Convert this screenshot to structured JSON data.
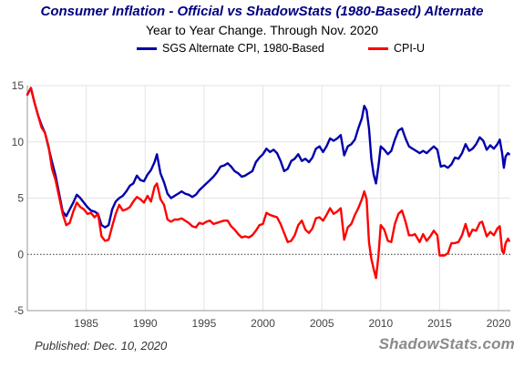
{
  "title": "Consumer Inflation - Official vs ShadowStats (1980-Based) Alternate",
  "subtitle": "Year to Year Change. Through Nov. 2020",
  "footer": {
    "published": "Published: Dec. 10, 2020",
    "brand": "ShadowStats.com"
  },
  "colors": {
    "sgs": "#0000aa",
    "cpi": "#ff0000",
    "title": "#000080"
  },
  "chart_data": {
    "type": "line",
    "xlabel": "",
    "ylabel": "",
    "xlim": [
      1980.0,
      2021.0
    ],
    "ylim": [
      -5,
      15
    ],
    "yticks": [
      -5,
      0,
      5,
      10,
      15
    ],
    "xticks": [
      1985,
      1990,
      1995,
      2000,
      2005,
      2010,
      2015,
      2020
    ],
    "grid": true,
    "zero_line": "dotted",
    "legend_position": "top",
    "series": [
      {
        "name": "SGS Alternate CPI, 1980-Based",
        "color": "#0000aa",
        "points": [
          [
            1980.0,
            14.2
          ],
          [
            1980.3,
            14.8
          ],
          [
            1980.6,
            13.5
          ],
          [
            1980.9,
            12.4
          ],
          [
            1981.2,
            11.5
          ],
          [
            1981.5,
            10.8
          ],
          [
            1981.8,
            9.5
          ],
          [
            1982.1,
            8.2
          ],
          [
            1982.4,
            7.0
          ],
          [
            1982.7,
            5.4
          ],
          [
            1983.0,
            3.8
          ],
          [
            1983.3,
            3.4
          ],
          [
            1983.6,
            4.0
          ],
          [
            1983.9,
            4.6
          ],
          [
            1984.2,
            5.3
          ],
          [
            1984.5,
            5.0
          ],
          [
            1984.8,
            4.6
          ],
          [
            1985.1,
            4.2
          ],
          [
            1985.4,
            3.9
          ],
          [
            1985.7,
            3.8
          ],
          [
            1986.0,
            3.6
          ],
          [
            1986.3,
            2.6
          ],
          [
            1986.6,
            2.4
          ],
          [
            1986.9,
            2.6
          ],
          [
            1987.2,
            4.0
          ],
          [
            1987.5,
            4.7
          ],
          [
            1987.8,
            5.0
          ],
          [
            1988.1,
            5.2
          ],
          [
            1988.4,
            5.6
          ],
          [
            1988.7,
            6.1
          ],
          [
            1989.0,
            6.3
          ],
          [
            1989.3,
            7.0
          ],
          [
            1989.6,
            6.6
          ],
          [
            1989.9,
            6.5
          ],
          [
            1990.2,
            7.1
          ],
          [
            1990.5,
            7.5
          ],
          [
            1990.8,
            8.2
          ],
          [
            1991.0,
            8.9
          ],
          [
            1991.3,
            7.2
          ],
          [
            1991.6,
            6.4
          ],
          [
            1991.9,
            5.4
          ],
          [
            1992.2,
            5.0
          ],
          [
            1992.5,
            5.2
          ],
          [
            1992.8,
            5.4
          ],
          [
            1993.1,
            5.6
          ],
          [
            1993.4,
            5.4
          ],
          [
            1993.7,
            5.3
          ],
          [
            1994.0,
            5.1
          ],
          [
            1994.3,
            5.3
          ],
          [
            1994.6,
            5.7
          ],
          [
            1994.9,
            6.0
          ],
          [
            1995.2,
            6.3
          ],
          [
            1995.5,
            6.6
          ],
          [
            1995.8,
            6.9
          ],
          [
            1996.1,
            7.3
          ],
          [
            1996.4,
            7.8
          ],
          [
            1996.7,
            7.9
          ],
          [
            1997.0,
            8.1
          ],
          [
            1997.3,
            7.8
          ],
          [
            1997.6,
            7.4
          ],
          [
            1997.9,
            7.2
          ],
          [
            1998.2,
            6.9
          ],
          [
            1998.5,
            7.0
          ],
          [
            1998.8,
            7.2
          ],
          [
            1999.1,
            7.4
          ],
          [
            1999.4,
            8.2
          ],
          [
            1999.7,
            8.6
          ],
          [
            2000.0,
            8.9
          ],
          [
            2000.3,
            9.4
          ],
          [
            2000.6,
            9.1
          ],
          [
            2000.9,
            9.3
          ],
          [
            2001.2,
            9.0
          ],
          [
            2001.5,
            8.3
          ],
          [
            2001.8,
            7.4
          ],
          [
            2002.1,
            7.6
          ],
          [
            2002.4,
            8.3
          ],
          [
            2002.7,
            8.5
          ],
          [
            2003.0,
            8.9
          ],
          [
            2003.3,
            8.3
          ],
          [
            2003.6,
            8.5
          ],
          [
            2003.9,
            8.2
          ],
          [
            2004.2,
            8.6
          ],
          [
            2004.5,
            9.4
          ],
          [
            2004.8,
            9.6
          ],
          [
            2005.1,
            9.1
          ],
          [
            2005.4,
            9.6
          ],
          [
            2005.7,
            10.3
          ],
          [
            2006.0,
            10.1
          ],
          [
            2006.3,
            10.3
          ],
          [
            2006.6,
            10.6
          ],
          [
            2006.9,
            8.8
          ],
          [
            2007.2,
            9.6
          ],
          [
            2007.5,
            9.8
          ],
          [
            2007.8,
            10.2
          ],
          [
            2008.1,
            11.2
          ],
          [
            2008.4,
            12.1
          ],
          [
            2008.6,
            13.2
          ],
          [
            2008.8,
            12.8
          ],
          [
            2009.0,
            11.2
          ],
          [
            2009.2,
            8.5
          ],
          [
            2009.4,
            7.1
          ],
          [
            2009.6,
            6.3
          ],
          [
            2009.8,
            7.8
          ],
          [
            2010.0,
            9.6
          ],
          [
            2010.3,
            9.3
          ],
          [
            2010.6,
            8.9
          ],
          [
            2010.9,
            9.2
          ],
          [
            2011.2,
            10.2
          ],
          [
            2011.5,
            11.0
          ],
          [
            2011.8,
            11.2
          ],
          [
            2012.1,
            10.3
          ],
          [
            2012.4,
            9.6
          ],
          [
            2012.7,
            9.4
          ],
          [
            2013.0,
            9.2
          ],
          [
            2013.3,
            9.0
          ],
          [
            2013.6,
            9.2
          ],
          [
            2013.9,
            9.0
          ],
          [
            2014.2,
            9.3
          ],
          [
            2014.5,
            9.6
          ],
          [
            2014.8,
            9.3
          ],
          [
            2015.1,
            7.8
          ],
          [
            2015.4,
            7.9
          ],
          [
            2015.7,
            7.7
          ],
          [
            2016.0,
            8.0
          ],
          [
            2016.3,
            8.6
          ],
          [
            2016.6,
            8.5
          ],
          [
            2016.9,
            9.0
          ],
          [
            2017.2,
            9.8
          ],
          [
            2017.5,
            9.2
          ],
          [
            2017.8,
            9.4
          ],
          [
            2018.1,
            9.8
          ],
          [
            2018.4,
            10.4
          ],
          [
            2018.7,
            10.1
          ],
          [
            2019.0,
            9.3
          ],
          [
            2019.3,
            9.7
          ],
          [
            2019.6,
            9.4
          ],
          [
            2019.9,
            9.8
          ],
          [
            2020.1,
            10.2
          ],
          [
            2020.3,
            9.0
          ],
          [
            2020.45,
            7.7
          ],
          [
            2020.6,
            8.7
          ],
          [
            2020.8,
            9.0
          ],
          [
            2020.9,
            8.9
          ]
        ]
      },
      {
        "name": "CPI-U",
        "color": "#ff0000",
        "points": [
          [
            1980.0,
            14.2
          ],
          [
            1980.3,
            14.8
          ],
          [
            1980.6,
            13.5
          ],
          [
            1980.9,
            12.4
          ],
          [
            1981.2,
            11.3
          ],
          [
            1981.5,
            10.8
          ],
          [
            1981.8,
            9.6
          ],
          [
            1982.1,
            7.6
          ],
          [
            1982.4,
            6.6
          ],
          [
            1982.7,
            5.1
          ],
          [
            1983.0,
            3.6
          ],
          [
            1983.3,
            2.6
          ],
          [
            1983.6,
            2.8
          ],
          [
            1983.9,
            3.8
          ],
          [
            1984.2,
            4.6
          ],
          [
            1984.5,
            4.2
          ],
          [
            1984.8,
            4.0
          ],
          [
            1985.1,
            3.6
          ],
          [
            1985.4,
            3.7
          ],
          [
            1985.7,
            3.3
          ],
          [
            1986.0,
            3.6
          ],
          [
            1986.3,
            1.6
          ],
          [
            1986.6,
            1.2
          ],
          [
            1986.9,
            1.3
          ],
          [
            1987.2,
            2.5
          ],
          [
            1987.5,
            3.6
          ],
          [
            1987.8,
            4.4
          ],
          [
            1988.1,
            3.9
          ],
          [
            1988.4,
            4.0
          ],
          [
            1988.7,
            4.2
          ],
          [
            1989.0,
            4.7
          ],
          [
            1989.3,
            5.1
          ],
          [
            1989.6,
            4.9
          ],
          [
            1989.9,
            4.6
          ],
          [
            1990.2,
            5.2
          ],
          [
            1990.5,
            4.7
          ],
          [
            1990.8,
            6.0
          ],
          [
            1991.0,
            6.3
          ],
          [
            1991.3,
            4.9
          ],
          [
            1991.6,
            4.4
          ],
          [
            1991.9,
            3.1
          ],
          [
            1992.2,
            2.9
          ],
          [
            1992.5,
            3.1
          ],
          [
            1992.8,
            3.1
          ],
          [
            1993.1,
            3.2
          ],
          [
            1993.4,
            3.0
          ],
          [
            1993.7,
            2.8
          ],
          [
            1994.0,
            2.5
          ],
          [
            1994.3,
            2.4
          ],
          [
            1994.6,
            2.8
          ],
          [
            1994.9,
            2.7
          ],
          [
            1995.2,
            2.9
          ],
          [
            1995.5,
            3.0
          ],
          [
            1995.8,
            2.7
          ],
          [
            1996.1,
            2.8
          ],
          [
            1996.4,
            2.9
          ],
          [
            1996.7,
            3.0
          ],
          [
            1997.0,
            3.0
          ],
          [
            1997.3,
            2.5
          ],
          [
            1997.6,
            2.2
          ],
          [
            1997.9,
            1.8
          ],
          [
            1998.2,
            1.5
          ],
          [
            1998.5,
            1.6
          ],
          [
            1998.8,
            1.5
          ],
          [
            1999.1,
            1.7
          ],
          [
            1999.4,
            2.1
          ],
          [
            1999.7,
            2.6
          ],
          [
            2000.0,
            2.7
          ],
          [
            2000.3,
            3.7
          ],
          [
            2000.6,
            3.5
          ],
          [
            2000.9,
            3.4
          ],
          [
            2001.2,
            3.3
          ],
          [
            2001.5,
            2.7
          ],
          [
            2001.8,
            1.9
          ],
          [
            2002.1,
            1.1
          ],
          [
            2002.4,
            1.2
          ],
          [
            2002.7,
            1.7
          ],
          [
            2003.0,
            2.6
          ],
          [
            2003.3,
            3.0
          ],
          [
            2003.6,
            2.2
          ],
          [
            2003.9,
            1.9
          ],
          [
            2004.2,
            2.3
          ],
          [
            2004.5,
            3.2
          ],
          [
            2004.8,
            3.3
          ],
          [
            2005.1,
            3.0
          ],
          [
            2005.4,
            3.5
          ],
          [
            2005.7,
            4.1
          ],
          [
            2006.0,
            3.6
          ],
          [
            2006.3,
            3.8
          ],
          [
            2006.6,
            4.1
          ],
          [
            2006.9,
            1.3
          ],
          [
            2007.2,
            2.4
          ],
          [
            2007.5,
            2.7
          ],
          [
            2007.8,
            3.5
          ],
          [
            2008.1,
            4.1
          ],
          [
            2008.4,
            4.9
          ],
          [
            2008.6,
            5.6
          ],
          [
            2008.8,
            4.9
          ],
          [
            2009.0,
            1.1
          ],
          [
            2009.2,
            -0.4
          ],
          [
            2009.4,
            -1.3
          ],
          [
            2009.6,
            -2.1
          ],
          [
            2009.8,
            -0.2
          ],
          [
            2010.0,
            2.6
          ],
          [
            2010.3,
            2.2
          ],
          [
            2010.6,
            1.2
          ],
          [
            2010.9,
            1.1
          ],
          [
            2011.2,
            2.7
          ],
          [
            2011.5,
            3.6
          ],
          [
            2011.8,
            3.9
          ],
          [
            2012.1,
            2.9
          ],
          [
            2012.4,
            1.7
          ],
          [
            2012.7,
            1.7
          ],
          [
            2012.9,
            1.8
          ],
          [
            2013.3,
            1.1
          ],
          [
            2013.6,
            1.8
          ],
          [
            2013.9,
            1.2
          ],
          [
            2014.2,
            1.6
          ],
          [
            2014.5,
            2.1
          ],
          [
            2014.8,
            1.7
          ],
          [
            2015.0,
            -0.1
          ],
          [
            2015.4,
            -0.1
          ],
          [
            2015.7,
            0.1
          ],
          [
            2016.0,
            1.0
          ],
          [
            2016.3,
            1.0
          ],
          [
            2016.6,
            1.1
          ],
          [
            2016.9,
            1.7
          ],
          [
            2017.2,
            2.7
          ],
          [
            2017.5,
            1.6
          ],
          [
            2017.8,
            2.2
          ],
          [
            2018.1,
            2.1
          ],
          [
            2018.4,
            2.8
          ],
          [
            2018.6,
            2.9
          ],
          [
            2019.0,
            1.6
          ],
          [
            2019.3,
            2.0
          ],
          [
            2019.6,
            1.7
          ],
          [
            2019.9,
            2.3
          ],
          [
            2020.1,
            2.5
          ],
          [
            2020.3,
            0.3
          ],
          [
            2020.45,
            0.1
          ],
          [
            2020.6,
            1.0
          ],
          [
            2020.8,
            1.4
          ],
          [
            2020.9,
            1.2
          ]
        ]
      }
    ]
  }
}
